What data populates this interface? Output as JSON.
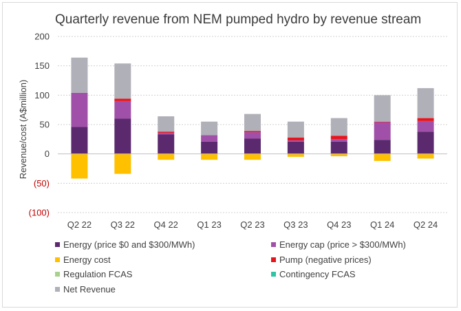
{
  "chart_data": {
    "type": "bar",
    "stacked": true,
    "title": "Quarterly revenue from NEM pumped hydro by revenue stream",
    "ylabel": "Revenue/cost (A$million)",
    "xlabel": "",
    "ylim": [
      -100,
      200
    ],
    "yticks": [
      {
        "value": 200,
        "label": "200",
        "color": "#404040"
      },
      {
        "value": 150,
        "label": "150",
        "color": "#404040"
      },
      {
        "value": 100,
        "label": "100",
        "color": "#404040"
      },
      {
        "value": 50,
        "label": "50",
        "color": "#404040"
      },
      {
        "value": 0,
        "label": "0",
        "color": "#404040"
      },
      {
        "value": -50,
        "label": "(50)",
        "color": "#c00000"
      },
      {
        "value": -100,
        "label": "(100)",
        "color": "#c00000"
      }
    ],
    "grid": true,
    "legend_position": "bottom",
    "categories": [
      "Q2 22",
      "Q3 22",
      "Q4 22",
      "Q1 23",
      "Q2 23",
      "Q3 23",
      "Q4 23",
      "Q1 24",
      "Q2 24"
    ],
    "series": [
      {
        "name": "Energy (price $0 and $300/MWh)",
        "color": "#5b2a6e",
        "values": [
          46,
          60,
          33,
          21,
          26,
          21,
          21,
          24,
          38
        ]
      },
      {
        "name": "Energy cap (price > $300/MWh)",
        "color": "#a050a8",
        "values": [
          58,
          30,
          3,
          11,
          11,
          2,
          4,
          30,
          18
        ]
      },
      {
        "name": "Energy cost",
        "color": "#ffc000",
        "values": [
          -42,
          -34,
          -10,
          -10,
          -10,
          -5,
          -4,
          -12,
          -8
        ]
      },
      {
        "name": "Pump (negative prices)",
        "color": "#e8141c",
        "values": [
          0,
          4,
          2,
          0,
          2,
          5,
          6,
          1,
          5
        ]
      },
      {
        "name": "Regulation FCAS",
        "color": "#a9d18e",
        "values": [
          0,
          0,
          0,
          0,
          0,
          0,
          0,
          0,
          0
        ]
      },
      {
        "name": "Contingency FCAS",
        "color": "#2ec4a5",
        "values": [
          0,
          0,
          0,
          0,
          0,
          0,
          0,
          0,
          0
        ]
      },
      {
        "name": "Net Revenue",
        "color": "#b0b0b8",
        "values": [
          60,
          60,
          26,
          23,
          29,
          27,
          30,
          45,
          51
        ]
      }
    ]
  }
}
